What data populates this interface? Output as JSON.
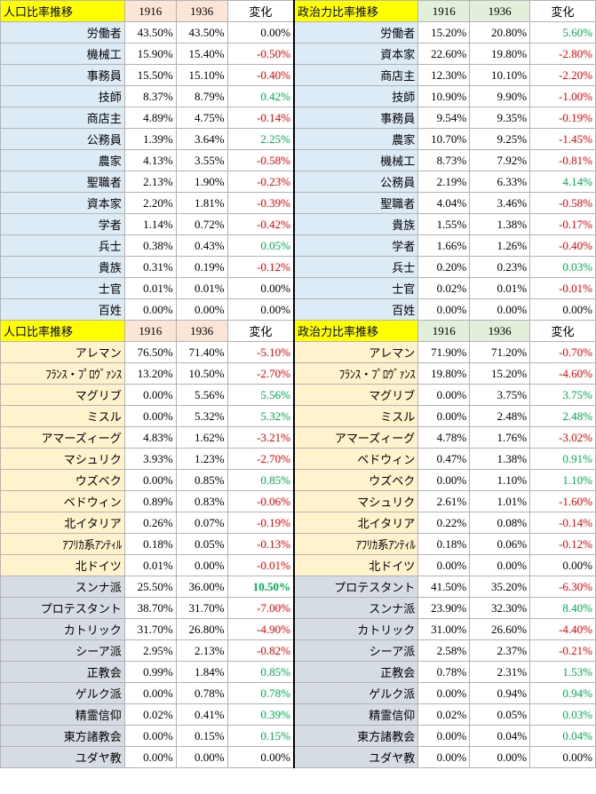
{
  "sections": [
    {
      "left_header": {
        "title": "人口比率推移",
        "y1": "1916",
        "y2": "1936",
        "change": "変化"
      },
      "right_header": {
        "title": "政治力比率推移",
        "y1": "1916",
        "y2": "1936",
        "change": "変化"
      },
      "left_rows": [
        [
          "労働者",
          "43.50%",
          "43.50%",
          "0.00%"
        ],
        [
          "機械工",
          "15.90%",
          "15.40%",
          "-0.50%"
        ],
        [
          "事務員",
          "15.50%",
          "15.10%",
          "-0.40%"
        ],
        [
          "技師",
          "8.37%",
          "8.79%",
          "0.42%"
        ],
        [
          "商店主",
          "4.89%",
          "4.75%",
          "-0.14%"
        ],
        [
          "公務員",
          "1.39%",
          "3.64%",
          "2.25%"
        ],
        [
          "農家",
          "4.13%",
          "3.55%",
          "-0.58%"
        ],
        [
          "聖職者",
          "2.13%",
          "1.90%",
          "-0.23%"
        ],
        [
          "資本家",
          "2.20%",
          "1.81%",
          "-0.39%"
        ],
        [
          "学者",
          "1.14%",
          "0.72%",
          "-0.42%"
        ],
        [
          "兵士",
          "0.38%",
          "0.43%",
          "0.05%"
        ],
        [
          "貴族",
          "0.31%",
          "0.19%",
          "-0.12%"
        ],
        [
          "士官",
          "0.01%",
          "0.01%",
          "0.00%"
        ],
        [
          "百姓",
          "0.00%",
          "0.00%",
          "0.00%"
        ]
      ],
      "right_rows": [
        [
          "労働者",
          "15.20%",
          "20.80%",
          "5.60%"
        ],
        [
          "資本家",
          "22.60%",
          "19.80%",
          "-2.80%"
        ],
        [
          "商店主",
          "12.30%",
          "10.10%",
          "-2.20%"
        ],
        [
          "技師",
          "10.90%",
          "9.90%",
          "-1.00%"
        ],
        [
          "事務員",
          "9.54%",
          "9.35%",
          "-0.19%"
        ],
        [
          "農家",
          "10.70%",
          "9.25%",
          "-1.45%"
        ],
        [
          "機械工",
          "8.73%",
          "7.92%",
          "-0.81%"
        ],
        [
          "公務員",
          "2.19%",
          "6.33%",
          "4.14%"
        ],
        [
          "聖職者",
          "4.04%",
          "3.46%",
          "-0.58%"
        ],
        [
          "貴族",
          "1.55%",
          "1.38%",
          "-0.17%"
        ],
        [
          "学者",
          "1.66%",
          "1.26%",
          "-0.40%"
        ],
        [
          "兵士",
          "0.20%",
          "0.23%",
          "0.03%"
        ],
        [
          "士官",
          "0.02%",
          "0.01%",
          "-0.01%"
        ],
        [
          "百姓",
          "0.00%",
          "0.00%",
          "0.00%"
        ]
      ]
    },
    {
      "left_header": {
        "title": "人口比率推移",
        "y1": "1916",
        "y2": "1936",
        "change": "変化"
      },
      "right_header": {
        "title": "政治力比率推移",
        "y1": "1916",
        "y2": "1936",
        "change": "変化"
      },
      "left_rows": [
        [
          "アレマン",
          "76.50%",
          "71.40%",
          "-5.10%"
        ],
        [
          "ﾌﾗﾝｽ・ﾌﾟﾛｳﾞｧﾝｽ",
          "13.20%",
          "10.50%",
          "-2.70%"
        ],
        [
          "マグリブ",
          "0.00%",
          "5.56%",
          "5.56%"
        ],
        [
          "ミスル",
          "0.00%",
          "5.32%",
          "5.32%"
        ],
        [
          "アマーズィーグ",
          "4.83%",
          "1.62%",
          "-3.21%"
        ],
        [
          "マシュリク",
          "3.93%",
          "1.23%",
          "-2.70%"
        ],
        [
          "ウズベク",
          "0.00%",
          "0.85%",
          "0.85%"
        ],
        [
          "ベドウィン",
          "0.89%",
          "0.83%",
          "-0.06%"
        ],
        [
          "北イタリア",
          "0.26%",
          "0.07%",
          "-0.19%"
        ],
        [
          "ｱﾌﾘｶ系ｱﾝﾃｨﾙ",
          "0.18%",
          "0.05%",
          "-0.13%"
        ],
        [
          "北ドイツ",
          "0.01%",
          "0.00%",
          "-0.01%"
        ]
      ],
      "right_rows": [
        [
          "アレマン",
          "71.90%",
          "71.20%",
          "-0.70%"
        ],
        [
          "ﾌﾗﾝｽ・ﾌﾟﾛｳﾞｧﾝｽ",
          "19.80%",
          "15.20%",
          "-4.60%"
        ],
        [
          "マグリブ",
          "0.00%",
          "3.75%",
          "3.75%"
        ],
        [
          "ミスル",
          "0.00%",
          "2.48%",
          "2.48%"
        ],
        [
          "アマーズィーグ",
          "4.78%",
          "1.76%",
          "-3.02%"
        ],
        [
          "ベドウィン",
          "0.47%",
          "1.38%",
          "0.91%"
        ],
        [
          "ウズベク",
          "0.00%",
          "1.10%",
          "1.10%"
        ],
        [
          "マシュリク",
          "2.61%",
          "1.01%",
          "-1.60%"
        ],
        [
          "北イタリア",
          "0.22%",
          "0.08%",
          "-0.14%"
        ],
        [
          "ｱﾌﾘｶ系ｱﾝﾃｨﾙ",
          "0.18%",
          "0.06%",
          "-0.12%"
        ],
        [
          "北ドイツ",
          "0.00%",
          "0.00%",
          "0.00%"
        ]
      ]
    },
    {
      "left_rows": [
        [
          "スンナ派",
          "25.50%",
          "36.00%",
          "10.50%"
        ],
        [
          "プロテスタント",
          "38.70%",
          "31.70%",
          "-7.00%"
        ],
        [
          "カトリック",
          "31.70%",
          "26.80%",
          "-4.90%"
        ],
        [
          "シーア派",
          "2.95%",
          "2.13%",
          "-0.82%"
        ],
        [
          "正教会",
          "0.99%",
          "1.84%",
          "0.85%"
        ],
        [
          "ゲルク派",
          "0.00%",
          "0.78%",
          "0.78%"
        ],
        [
          "精霊信仰",
          "0.02%",
          "0.41%",
          "0.39%"
        ],
        [
          "東方諸教会",
          "0.00%",
          "0.15%",
          "0.15%"
        ],
        [
          "ユダヤ教",
          "0.00%",
          "0.00%",
          "0.00%"
        ]
      ],
      "right_rows": [
        [
          "プロテスタント",
          "41.50%",
          "35.20%",
          "-6.30%"
        ],
        [
          "スンナ派",
          "23.90%",
          "32.30%",
          "8.40%"
        ],
        [
          "カトリック",
          "31.00%",
          "26.60%",
          "-4.40%"
        ],
        [
          "シーア派",
          "2.58%",
          "2.37%",
          "-0.21%"
        ],
        [
          "正教会",
          "0.78%",
          "2.31%",
          "1.53%"
        ],
        [
          "ゲルク派",
          "0.00%",
          "0.94%",
          "0.94%"
        ],
        [
          "精霊信仰",
          "0.02%",
          "0.05%",
          "0.03%"
        ],
        [
          "東方諸教会",
          "0.00%",
          "0.04%",
          "0.04%"
        ],
        [
          "ユダヤ教",
          "0.00%",
          "0.00%",
          "0.00%"
        ]
      ]
    }
  ]
}
